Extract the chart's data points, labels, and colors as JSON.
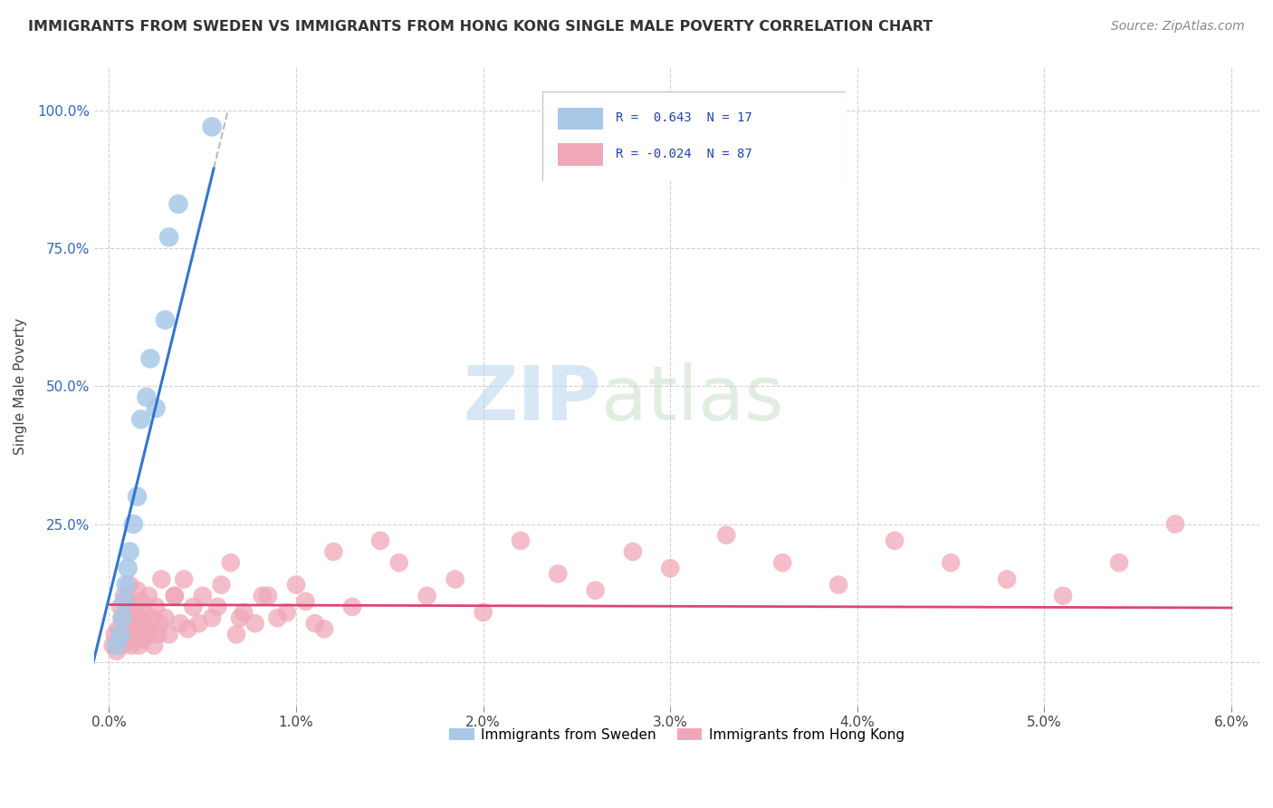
{
  "title": "IMMIGRANTS FROM SWEDEN VS IMMIGRANTS FROM HONG KONG SINGLE MALE POVERTY CORRELATION CHART",
  "source": "Source: ZipAtlas.com",
  "ylabel": "Single Male Poverty",
  "xlim_min": -0.08,
  "xlim_max": 6.15,
  "ylim_min": -8,
  "ylim_max": 108,
  "xticks": [
    0.0,
    1.0,
    2.0,
    3.0,
    4.0,
    5.0,
    6.0
  ],
  "yticks": [
    0.0,
    25.0,
    50.0,
    75.0,
    100.0
  ],
  "xtick_labels": [
    "0.0%",
    "1.0%",
    "2.0%",
    "3.0%",
    "4.0%",
    "5.0%",
    "6.0%"
  ],
  "ytick_labels": [
    "",
    "25.0%",
    "50.0%",
    "75.0%",
    "100.0%"
  ],
  "sweden_color": "#a8c8e8",
  "hongkong_color": "#f0a8b8",
  "sweden_line_color": "#3377cc",
  "hongkong_line_color": "#dd4477",
  "sweden_line_dash_color": "#aaaaaa",
  "R_sweden": 0.643,
  "N_sweden": 17,
  "R_hongkong": -0.024,
  "N_hongkong": 87,
  "legend_label_sweden": "Immigrants from Sweden",
  "legend_label_hongkong": "Immigrants from Hong Kong",
  "sweden_x": [
    0.04,
    0.06,
    0.07,
    0.08,
    0.09,
    0.1,
    0.11,
    0.13,
    0.15,
    0.17,
    0.2,
    0.22,
    0.25,
    0.3,
    0.32,
    0.37,
    0.55
  ],
  "sweden_y": [
    3,
    5,
    8,
    11,
    14,
    17,
    20,
    25,
    30,
    44,
    48,
    55,
    46,
    62,
    77,
    83,
    97
  ],
  "hongkong_x": [
    0.02,
    0.03,
    0.04,
    0.05,
    0.06,
    0.06,
    0.07,
    0.07,
    0.08,
    0.08,
    0.09,
    0.09,
    0.1,
    0.1,
    0.11,
    0.11,
    0.12,
    0.12,
    0.13,
    0.13,
    0.14,
    0.14,
    0.15,
    0.15,
    0.16,
    0.16,
    0.17,
    0.17,
    0.18,
    0.18,
    0.19,
    0.2,
    0.21,
    0.22,
    0.23,
    0.24,
    0.25,
    0.26,
    0.27,
    0.28,
    0.3,
    0.32,
    0.35,
    0.38,
    0.4,
    0.42,
    0.45,
    0.5,
    0.55,
    0.6,
    0.65,
    0.68,
    0.72,
    0.78,
    0.82,
    0.9,
    1.0,
    1.1,
    1.2,
    1.3,
    1.45,
    1.55,
    1.7,
    1.85,
    2.0,
    2.2,
    2.4,
    2.6,
    2.8,
    3.0,
    3.3,
    3.6,
    3.9,
    4.2,
    4.5,
    4.8,
    5.1,
    5.4,
    5.7,
    0.35,
    0.48,
    0.58,
    0.7,
    0.85,
    0.95,
    1.05,
    1.15
  ],
  "hongkong_y": [
    3,
    5,
    2,
    6,
    4,
    10,
    3,
    8,
    7,
    12,
    5,
    9,
    4,
    11,
    6,
    14,
    3,
    8,
    5,
    10,
    4,
    9,
    6,
    13,
    3,
    8,
    5,
    11,
    4,
    7,
    9,
    6,
    12,
    5,
    8,
    3,
    10,
    5,
    7,
    15,
    8,
    5,
    12,
    7,
    15,
    6,
    10,
    12,
    8,
    14,
    18,
    5,
    9,
    7,
    12,
    8,
    14,
    7,
    20,
    10,
    22,
    18,
    12,
    15,
    9,
    22,
    16,
    13,
    20,
    17,
    23,
    18,
    14,
    22,
    18,
    15,
    12,
    18,
    25,
    12,
    7,
    10,
    8,
    12,
    9,
    11,
    6
  ]
}
